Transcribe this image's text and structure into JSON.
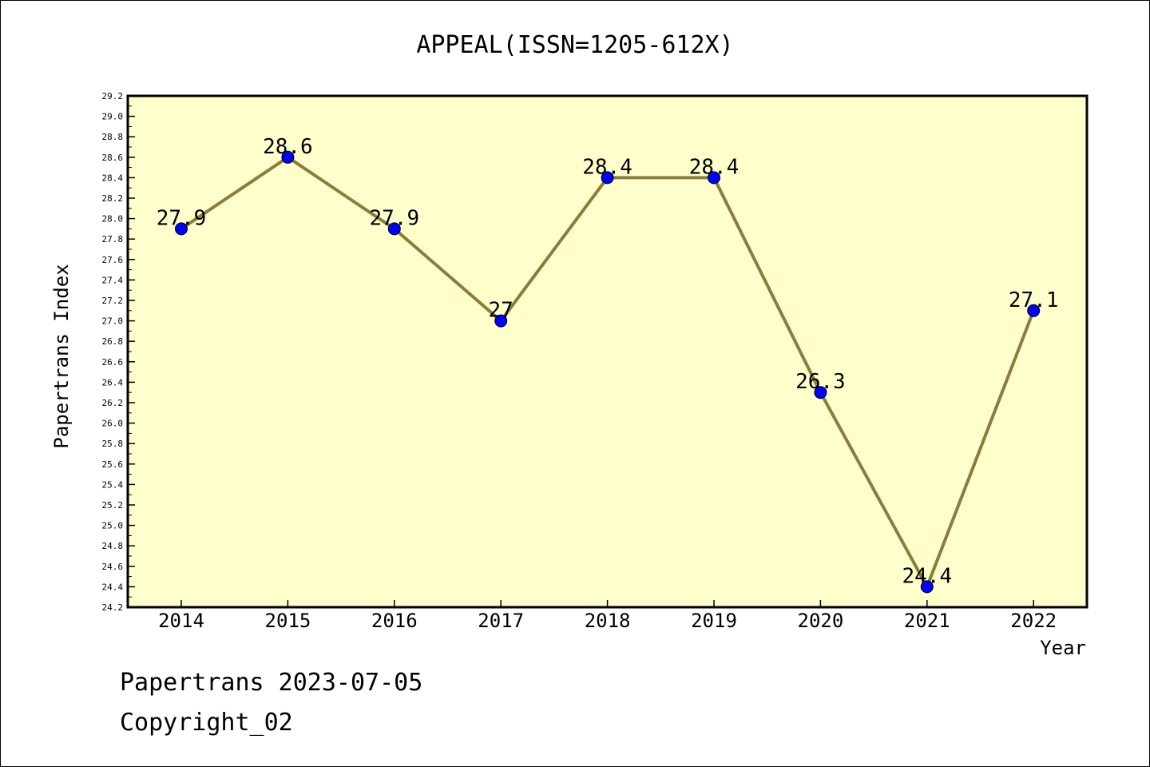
{
  "chart_data": {
    "type": "line",
    "title": "APPEAL(ISSN=1205-612X)",
    "xlabel": "Year",
    "ylabel": "Papertrans Index",
    "categories": [
      "2014",
      "2015",
      "2016",
      "2017",
      "2018",
      "2019",
      "2020",
      "2021",
      "2022"
    ],
    "series": [
      {
        "name": "Papertrans Index",
        "values": [
          27.9,
          28.6,
          27.9,
          27.0,
          28.4,
          28.4,
          26.3,
          24.4,
          27.1
        ],
        "labels": [
          "27.9",
          "28.6",
          "27.9",
          "27",
          "28.4",
          "28.4",
          "26.3",
          "24.4",
          "27.1"
        ]
      }
    ],
    "ylim": [
      24.2,
      29.2
    ],
    "ytick_step": 0.2,
    "colors": {
      "plot_background": "#ffffcc",
      "line": "#8c7c3c",
      "marker": "#0000ff"
    },
    "grid": false,
    "legend": "none"
  },
  "footer": {
    "date_line": "Papertrans 2023-07-05",
    "copyright": "Copyright_02"
  }
}
